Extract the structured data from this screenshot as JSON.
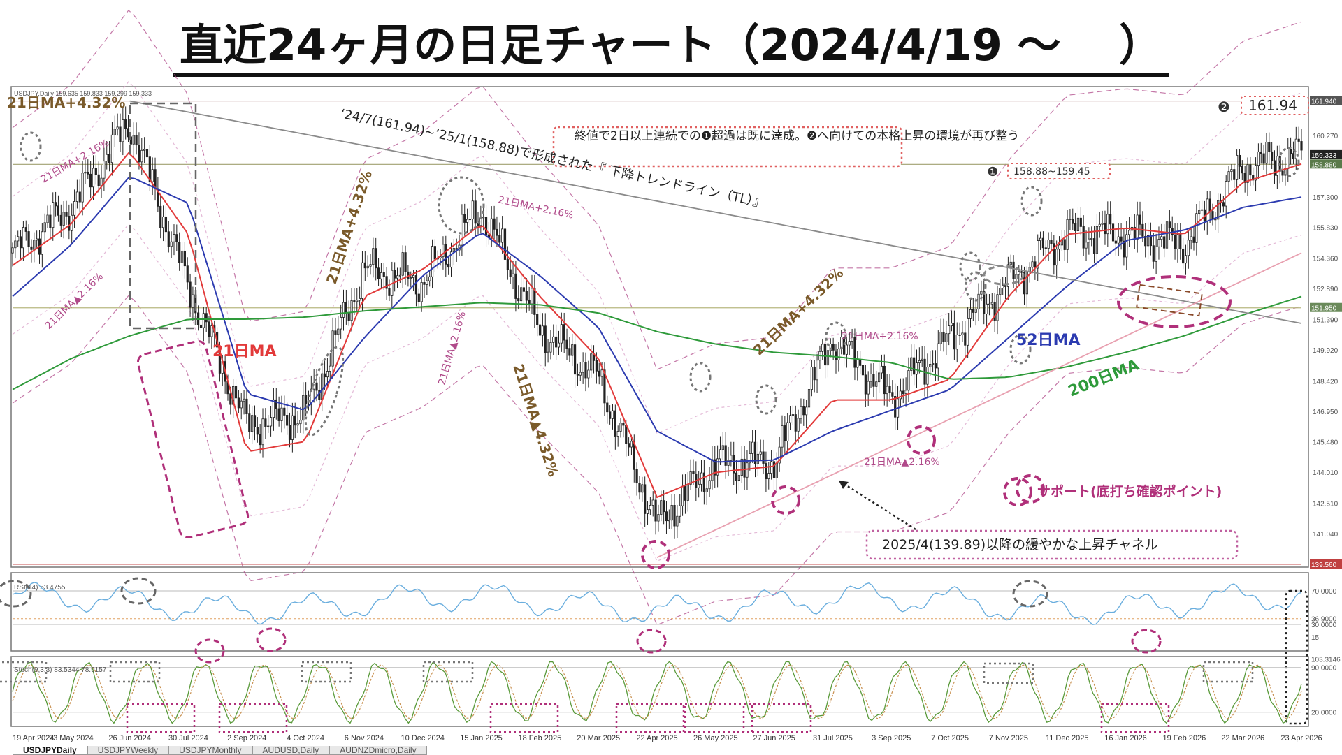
{
  "title": "直近24ヶ月の日足チャート（2024/4/19 ～　 ）",
  "main_chart": {
    "symbol_info": "USDJPY,Daily  159.635 159.833 159.299 159.333",
    "y_ticks": [
      "161.940",
      "160.270",
      "158.880",
      "157.300",
      "155.830",
      "154.360",
      "152.890",
      "151.390",
      "149.920",
      "148.420",
      "146.950",
      "145.480",
      "144.010",
      "142.510",
      "141.040",
      "139.560"
    ],
    "price_labels": {
      "high_box": "161.940",
      "current": "159.333",
      "box": "158.880",
      "level_151": "151.950",
      "low": "139.560"
    },
    "annotations": {
      "ma21_plus_top_left": "21日MA+4.32%",
      "ma21_plus216_a": "21日MA+2.16%",
      "ma21_minus216_a": "21日MA▲2.16%",
      "ma21_label": "21日MA",
      "ma21_plus432_b": "21日MA+4.32%",
      "trendline_label": "‘24/7(161.94)~’25/1(158.88)で形成された『 下降トレンドライン（TL）』",
      "ma21_plus216_b": "21日MA+2.16%",
      "ma21_minus216_b": "21日MA▲2.16%",
      "ma21_minus432": "21日MA▲4.32%",
      "ma21_plus432_c": "21日MA+4.32%",
      "ma21_plus216_c": "21日MA+2.16%",
      "ma21_minus216_c": "21日MA▲2.16%",
      "ma52_label": "52日MA",
      "ma200_label": "200日MA",
      "note": "終値で2日以上連続での❶超過は既に達成。❷へ向けての本格上昇の環境が再び整う",
      "mark1": "❶",
      "range1": "158.88~159.45",
      "mark2": "❷",
      "target2": "161.94",
      "support_legend": "サポート(底打ち確認ポイント)",
      "channel_label": "2025/4(139.89)以降の緩やかな上昇チャネル"
    }
  },
  "rsi_panel": {
    "label": "RSI(14) 53.4755",
    "ticks": [
      "70.0000",
      "36.9000",
      "30.0000",
      "15"
    ]
  },
  "stoch_panel": {
    "label": "Stoch(9,3,3) 83.5344 78.9157",
    "ticks": [
      "103.3146",
      "90.0000",
      "20.0000"
    ]
  },
  "x_axis": [
    "19 Apr 2024",
    "23 May 2024",
    "26 Jun 2024",
    "30 Jul 2024",
    "2 Sep 2024",
    "4 Oct 2024",
    "6 Nov 2024",
    "10 Dec 2024",
    "15 Jan 2025",
    "18 Feb 2025",
    "20 Mar 2025",
    "22 Apr 2025",
    "26 May 2025",
    "27 Jun 2025",
    "31 Jul 2025",
    "3 Sep 2025",
    "7 Oct 2025",
    "7 Nov 2025",
    "11 Dec 2025",
    "16 Jan 2026",
    "19 Feb 2026",
    "22 Mar 2026",
    "23 Apr 2026"
  ],
  "tabs": [
    "USDJPYDaily",
    "USDJPYWeekly",
    "USDJPYMonthly",
    "AUDUSD,Daily",
    "AUDNZDmicro,Daily"
  ],
  "colors": {
    "ma21": "#e23a3a",
    "ma52": "#2c3bb0",
    "ma200": "#2e9a3a",
    "candle": "#222222",
    "trendline": "#8a8a8a",
    "channel": "#e8a0b0",
    "support": "#b0307a",
    "annotation_brown": "#7a5a2a",
    "band_pink": "#b04a8a",
    "rsi": "#6aaede",
    "stoch_main": "#5a9a3a",
    "stoch_signal": "#c89050"
  },
  "chart_data": {
    "type": "line",
    "title": "直近24ヶ月の日足チャート（2024/4/19 ～　 ）",
    "xlabel": "",
    "ylabel": "",
    "x": [
      "19 Apr 2024",
      "23 May 2024",
      "26 Jun 2024",
      "30 Jul 2024",
      "2 Sep 2024",
      "4 Oct 2024",
      "6 Nov 2024",
      "10 Dec 2024",
      "15 Jan 2025",
      "18 Feb 2025",
      "20 Mar 2025",
      "22 Apr 2025",
      "26 May 2025",
      "27 Jun 2025",
      "31 Jul 2025",
      "3 Sep 2025",
      "7 Oct 2025",
      "7 Nov 2025",
      "11 Dec 2025",
      "16 Jan 2026",
      "19 Feb 2026",
      "22 Mar 2026",
      "23 Apr 2026"
    ],
    "ylim": [
      139.56,
      162.5
    ],
    "series": [
      {
        "name": "USDJPY",
        "values": [
          154.6,
          156.8,
          160.9,
          153.0,
          146.3,
          146.8,
          153.8,
          153.2,
          156.7,
          150.9,
          148.6,
          141.5,
          144.4,
          144.5,
          150.5,
          147.6,
          150.5,
          153.2,
          155.6,
          155.5,
          155.0,
          158.8,
          159.3
        ]
      },
      {
        "name": "21日MA",
        "values": [
          154.0,
          156.0,
          159.5,
          155.5,
          145.0,
          145.5,
          152.5,
          153.8,
          156.0,
          152.5,
          149.5,
          142.8,
          144.0,
          144.3,
          147.5,
          147.5,
          148.5,
          152.5,
          155.5,
          155.8,
          155.5,
          158.0,
          158.9
        ]
      },
      {
        "name": "52日MA",
        "values": [
          152.5,
          155.0,
          158.3,
          157.0,
          147.8,
          147.0,
          150.5,
          153.5,
          155.6,
          153.5,
          151.0,
          146.0,
          144.5,
          144.6,
          146.0,
          147.0,
          148.0,
          150.5,
          153.0,
          155.2,
          155.7,
          156.8,
          157.3
        ]
      },
      {
        "name": "200日MA",
        "values": [
          148.0,
          149.5,
          150.6,
          151.4,
          151.4,
          151.5,
          151.8,
          152.0,
          152.2,
          152.1,
          151.7,
          150.8,
          150.2,
          149.8,
          149.6,
          149.3,
          148.5,
          148.6,
          149.1,
          149.8,
          150.6,
          151.6,
          152.5
        ]
      }
    ],
    "lines": [
      {
        "name": "下降トレンドライン（TL）",
        "from": {
          "x": "26 Jun 2024",
          "y": 161.94
        },
        "to": {
          "x": "23 Apr 2026",
          "y": 151.2
        }
      },
      {
        "name": "上昇チャネル",
        "from": {
          "x": "22 Apr 2025",
          "y": 139.89
        },
        "to": {
          "x": "23 Apr 2026",
          "y": 154.6
        }
      }
    ],
    "hlines": [
      161.94,
      158.88,
      151.95,
      139.56
    ],
    "rsi": {
      "current": 53.4755,
      "levels": [
        70,
        36.9,
        30
      ]
    },
    "stoch": {
      "main": 83.5344,
      "signal": 78.9157,
      "levels": [
        90,
        20
      ]
    },
    "grid": false,
    "legend": "none"
  }
}
